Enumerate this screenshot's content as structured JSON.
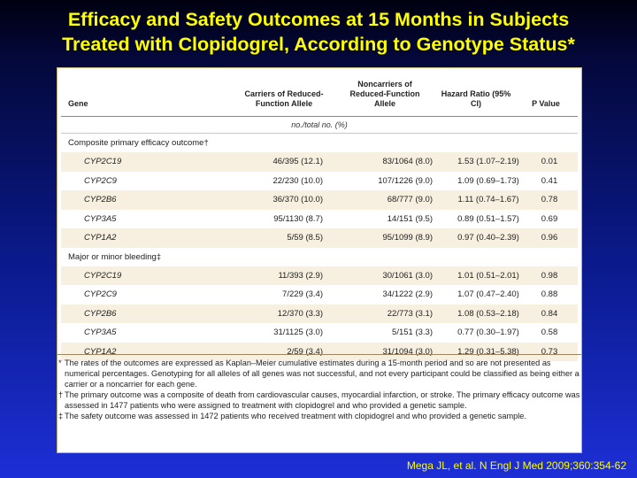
{
  "title": {
    "line1": "Efficacy and Safety Outcomes at 15 Months in Subjects",
    "line2": "Treated with Clopidogrel, According to Genotype Status*"
  },
  "table": {
    "headers": {
      "gene": "Gene",
      "carriers": "Carriers of Reduced-Function Allele",
      "noncarriers": "Noncarriers of Reduced-Function Allele",
      "hazard": "Hazard Ratio (95% CI)",
      "pvalue": "P Value"
    },
    "units": "no./total no. (%)",
    "sections": [
      {
        "label": "Composite primary efficacy outcome†",
        "rows": [
          {
            "gene": "CYP2C19",
            "carriers": "46/395 (12.1)",
            "noncarriers": "83/1064 (8.0)",
            "hr": "1.53 (1.07–2.19)",
            "p": "0.01"
          },
          {
            "gene": "CYP2C9",
            "carriers": "22/230 (10.0)",
            "noncarriers": "107/1226 (9.0)",
            "hr": "1.09 (0.69–1.73)",
            "p": "0.41"
          },
          {
            "gene": "CYP2B6",
            "carriers": "36/370 (10.0)",
            "noncarriers": "68/777 (9.0)",
            "hr": "1.11 (0.74–1.67)",
            "p": "0.78"
          },
          {
            "gene": "CYP3A5",
            "carriers": "95/1130 (8.7)",
            "noncarriers": "14/151 (9.5)",
            "hr": "0.89 (0.51–1.57)",
            "p": "0.69"
          },
          {
            "gene": "CYP1A2",
            "carriers": "5/59 (8.5)",
            "noncarriers": "95/1099 (8.9)",
            "hr": "0.97 (0.40–2.39)",
            "p": "0.96"
          }
        ]
      },
      {
        "label": "Major or minor bleeding‡",
        "rows": [
          {
            "gene": "CYP2C19",
            "carriers": "11/393 (2.9)",
            "noncarriers": "30/1061 (3.0)",
            "hr": "1.01 (0.51–2.01)",
            "p": "0.98"
          },
          {
            "gene": "CYP2C9",
            "carriers": "7/229 (3.4)",
            "noncarriers": "34/1222 (2.9)",
            "hr": "1.07 (0.47–2.40)",
            "p": "0.88"
          },
          {
            "gene": "CYP2B6",
            "carriers": "12/370 (3.3)",
            "noncarriers": "22/773 (3.1)",
            "hr": "1.08 (0.53–2.18)",
            "p": "0.84"
          },
          {
            "gene": "CYP3A5",
            "carriers": "31/1125 (3.0)",
            "noncarriers": "5/151 (3.3)",
            "hr": "0.77 (0.30–1.97)",
            "p": "0.58"
          },
          {
            "gene": "CYP1A2",
            "carriers": "2/59 (3.4)",
            "noncarriers": "31/1094 (3.0)",
            "hr": "1.29 (0.31–5.38)",
            "p": "0.73"
          }
        ]
      }
    ],
    "footnotes": [
      {
        "mark": "*",
        "text": "The rates of the outcomes are expressed as Kaplan–Meier cumulative estimates during a 15-month period and so are not presented as numerical percentages. Genotyping for all alleles of all genes was not successful, and not every participant could be classified as being either a carrier or a noncarrier for each gene."
      },
      {
        "mark": "†",
        "text": "The primary outcome was a composite of death from cardiovascular causes, myocardial infarction, or stroke. The primary efficacy outcome was assessed in 1477 patients who were assigned to treatment with clopidogrel and who provided a genetic sample."
      },
      {
        "mark": "‡",
        "text": "The safety outcome was assessed in 1472 patients who received treatment with clopidogrel and who provided a genetic sample."
      }
    ]
  },
  "citation": "Mega JL, et al. N Engl J Med 2009;360:354-62",
  "colors": {
    "title": "#ffff00",
    "row_shade": "#f7efe0",
    "card_border": "#c8b07a"
  }
}
